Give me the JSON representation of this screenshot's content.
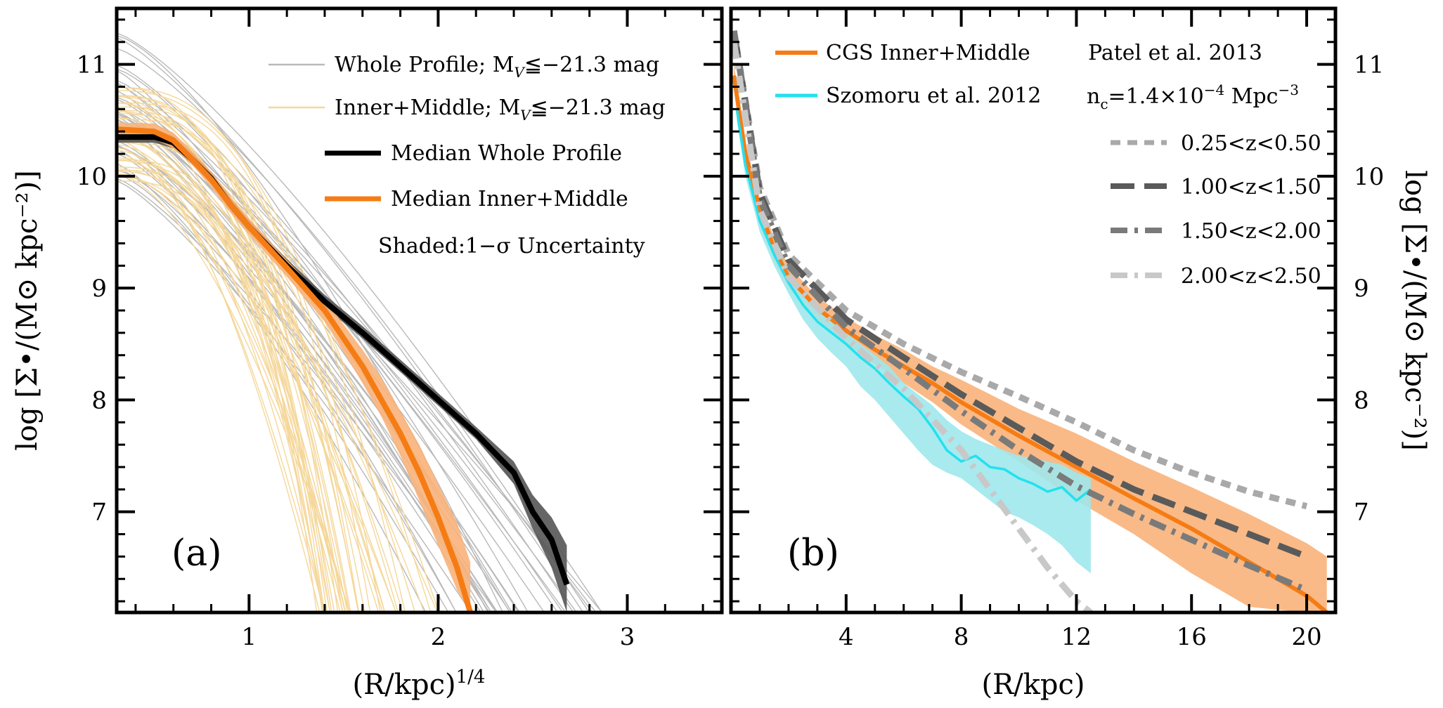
{
  "chart_data": [
    {
      "panel": "a",
      "type": "line",
      "panel_label": "(a)",
      "xlabel": "(R/kpc)",
      "xlabel_sup": "1/4",
      "ylabel": "log [Σ•/(M⊙ kpc⁻²)]",
      "xlim": [
        0.3,
        3.5
      ],
      "ylim": [
        6.1,
        11.5
      ],
      "x_ticks": [
        1,
        2,
        3
      ],
      "x_tick_labels": [
        "1",
        "2",
        "3"
      ],
      "y_ticks": [
        7,
        8,
        9,
        10,
        11
      ],
      "y_tick_labels": [
        "7",
        "8",
        "9",
        "10",
        "11"
      ],
      "legend": [
        {
          "label": "Whole Profile; M",
          "sub": "V",
          "suffix": "≦−21.3 mag",
          "color": "#b9b9b9",
          "style": "thin"
        },
        {
          "label": "Inner+Middle; M",
          "sub": "V",
          "suffix": "≦−21.3 mag",
          "color": "#f5d79a",
          "style": "thin"
        },
        {
          "label": "Median Whole Profile",
          "color": "#000000",
          "style": "thick"
        },
        {
          "label": "Median Inner+Middle",
          "color": "#f57c14",
          "style": "thick"
        }
      ],
      "annotation": "Shaded:1−σ Uncertainty",
      "series": [
        {
          "name": "Median Whole Profile",
          "color": "#000000",
          "x": [
            0.3,
            0.5,
            0.6,
            0.7,
            0.8,
            0.9,
            1.0,
            1.2,
            1.4,
            1.6,
            1.8,
            2.0,
            2.2,
            2.4,
            2.5,
            2.6,
            2.68
          ],
          "y": [
            10.35,
            10.35,
            10.3,
            10.15,
            9.98,
            9.75,
            9.55,
            9.2,
            8.88,
            8.6,
            8.3,
            8.0,
            7.7,
            7.35,
            7.0,
            6.75,
            6.35
          ],
          "band_lo": [
            10.3,
            10.3,
            10.25,
            10.1,
            9.93,
            9.7,
            9.5,
            9.15,
            8.83,
            8.55,
            8.25,
            7.95,
            7.65,
            7.25,
            6.85,
            6.5,
            6.1
          ],
          "band_hi": [
            10.42,
            10.42,
            10.36,
            10.21,
            10.04,
            9.81,
            9.61,
            9.26,
            8.94,
            8.66,
            8.36,
            8.06,
            7.76,
            7.45,
            7.15,
            6.95,
            6.7
          ],
          "band_color": "#555555"
        },
        {
          "name": "Median Inner+Middle",
          "color": "#f57c14",
          "x": [
            0.3,
            0.5,
            0.6,
            0.7,
            0.8,
            0.9,
            1.0,
            1.2,
            1.4,
            1.6,
            1.7,
            1.8,
            1.9,
            2.0,
            2.1,
            2.17
          ],
          "y": [
            10.42,
            10.4,
            10.32,
            10.15,
            9.97,
            9.75,
            9.55,
            9.18,
            8.8,
            8.3,
            8.0,
            7.7,
            7.35,
            6.95,
            6.5,
            6.1
          ],
          "band_lo": [
            10.35,
            10.33,
            10.25,
            10.1,
            9.9,
            9.68,
            9.48,
            9.1,
            8.7,
            8.15,
            7.85,
            7.5,
            7.1,
            6.7,
            6.3,
            6.1
          ],
          "band_hi": [
            10.48,
            10.47,
            10.39,
            10.22,
            10.04,
            9.82,
            9.62,
            9.25,
            8.9,
            8.45,
            8.2,
            7.9,
            7.6,
            7.25,
            6.9,
            6.55
          ],
          "band_color": "#f8b27a"
        }
      ]
    },
    {
      "panel": "b",
      "type": "line",
      "panel_label": "(b)",
      "xlabel": "(R/kpc)",
      "ylabel": "log [Σ•/(M⊙ kpc⁻²)]",
      "xlim": [
        0.0,
        21.0
      ],
      "ylim": [
        6.1,
        11.5
      ],
      "x_ticks": [
        4,
        8,
        12,
        16,
        20
      ],
      "x_tick_labels": [
        "4",
        "8",
        "12",
        "16",
        "20"
      ],
      "y_ticks": [
        7,
        8,
        9,
        10,
        11
      ],
      "y_tick_labels": [
        "7",
        "8",
        "9",
        "10",
        "11"
      ],
      "legend_left": [
        {
          "label": "CGS Inner+Middle",
          "color": "#f57c14"
        },
        {
          "label": "Szomoru et al. 2012",
          "color": "#22e1ee"
        }
      ],
      "legend_right_title": "Patel et al. 2013",
      "legend_right_subtitle": "n",
      "legend_right_subtitle_sub": "c",
      "legend_right_subtitle_rest": "=1.4×10",
      "legend_right_subtitle_exp": "−4",
      "legend_right_subtitle_unit": " Mpc",
      "legend_right_subtitle_unit_exp": "−3",
      "legend_right": [
        {
          "label": "0.25<z<0.50",
          "color": "#a9a9a9",
          "dash": "short"
        },
        {
          "label": "1.00<z<1.50",
          "color": "#5a5a5a",
          "dash": "long"
        },
        {
          "label": "1.50<z<2.00",
          "color": "#7a7a7a",
          "dash": "dashdot"
        },
        {
          "label": "2.00<z<2.50",
          "color": "#c8c8c8",
          "dash": "dashdot"
        }
      ],
      "series": [
        {
          "name": "CGS Inner+Middle",
          "color": "#f57c14",
          "x": [
            0.1,
            0.5,
            1.0,
            1.5,
            2.0,
            3.0,
            4.0,
            5.0,
            6.0,
            7.0,
            8.0,
            10.0,
            12.0,
            14.0,
            16.0,
            18.0,
            20.0,
            20.7
          ],
          "y": [
            10.9,
            10.2,
            9.7,
            9.35,
            9.1,
            8.82,
            8.62,
            8.45,
            8.3,
            8.15,
            7.98,
            7.68,
            7.4,
            7.12,
            6.85,
            6.55,
            6.25,
            6.1
          ],
          "band_lo": [
            10.8,
            10.1,
            9.6,
            9.25,
            9.0,
            8.72,
            8.5,
            8.32,
            8.15,
            7.98,
            7.78,
            7.45,
            7.1,
            6.8,
            6.45,
            6.15,
            6.1,
            6.1
          ],
          "band_hi": [
            11.0,
            10.3,
            9.8,
            9.45,
            9.2,
            8.92,
            8.74,
            8.58,
            8.45,
            8.3,
            8.18,
            7.92,
            7.7,
            7.45,
            7.22,
            6.98,
            6.72,
            6.6
          ],
          "band_color": "#f8b27a"
        },
        {
          "name": "Szomoru et al. 2012",
          "color": "#22e1ee",
          "x": [
            0.2,
            0.5,
            1.0,
            1.5,
            2.0,
            2.5,
            3.0,
            3.5,
            4.0,
            4.5,
            5.0,
            5.5,
            6.0,
            6.5,
            7.0,
            7.5,
            8.0,
            8.5,
            9.0,
            9.5,
            10.0,
            10.5,
            11.0,
            11.5,
            12.0,
            12.5
          ],
          "y": [
            10.6,
            10.1,
            9.6,
            9.3,
            9.05,
            8.85,
            8.7,
            8.6,
            8.5,
            8.38,
            8.28,
            8.15,
            8.03,
            7.92,
            7.75,
            7.55,
            7.45,
            7.5,
            7.4,
            7.38,
            7.3,
            7.25,
            7.18,
            7.22,
            7.1,
            7.2
          ],
          "band_lo": [
            10.5,
            10.0,
            9.5,
            9.2,
            8.95,
            8.72,
            8.55,
            8.42,
            8.3,
            8.12,
            8.0,
            7.85,
            7.7,
            7.55,
            7.42,
            7.35,
            7.3,
            7.2,
            7.1,
            7.0,
            6.95,
            6.88,
            6.8,
            6.7,
            6.55,
            6.45
          ],
          "band_hi": [
            10.7,
            10.2,
            9.7,
            9.4,
            9.15,
            8.95,
            8.8,
            8.7,
            8.6,
            8.5,
            8.4,
            8.3,
            8.15,
            8.05,
            7.95,
            7.82,
            7.72,
            7.65,
            7.6,
            7.55,
            7.5,
            7.48,
            7.45,
            7.42,
            7.35,
            7.3
          ],
          "band_color": "#9ee8ec"
        },
        {
          "name": "0.25<z<0.50",
          "color": "#a9a9a9",
          "dash": "short",
          "x": [
            0.1,
            1.0,
            2.0,
            4.0,
            6.0,
            8.0,
            10.0,
            12.0,
            14.0,
            16.0,
            18.0,
            20.0
          ],
          "y": [
            11.3,
            9.9,
            9.3,
            8.8,
            8.5,
            8.25,
            8.03,
            7.8,
            7.55,
            7.35,
            7.18,
            7.05
          ]
        },
        {
          "name": "1.00<z<1.50",
          "color": "#5a5a5a",
          "dash": "long",
          "x": [
            0.1,
            1.0,
            2.0,
            4.0,
            6.0,
            8.0,
            10.0,
            12.0,
            14.0,
            16.0,
            18.0,
            20.0
          ],
          "y": [
            11.3,
            9.85,
            9.25,
            8.72,
            8.38,
            8.05,
            7.75,
            7.45,
            7.2,
            7.0,
            6.8,
            6.6
          ]
        },
        {
          "name": "1.50<z<2.00",
          "color": "#7a7a7a",
          "dash": "dashdot",
          "x": [
            0.1,
            1.0,
            2.0,
            4.0,
            6.0,
            8.0,
            10.0,
            12.0,
            14.0,
            16.0,
            18.0,
            20.0
          ],
          "y": [
            11.3,
            9.8,
            9.2,
            8.65,
            8.28,
            7.9,
            7.55,
            7.23,
            6.98,
            6.75,
            6.52,
            6.3
          ]
        },
        {
          "name": "2.00<z<2.50",
          "color": "#c8c8c8",
          "dash": "dashdot",
          "x": [
            0.1,
            1.0,
            2.0,
            4.0,
            6.0,
            8.0,
            9.0,
            10.0,
            11.0,
            12.0,
            12.5
          ],
          "y": [
            11.2,
            9.7,
            9.1,
            8.55,
            8.1,
            7.55,
            7.2,
            6.85,
            6.5,
            6.2,
            6.1
          ]
        }
      ]
    }
  ]
}
